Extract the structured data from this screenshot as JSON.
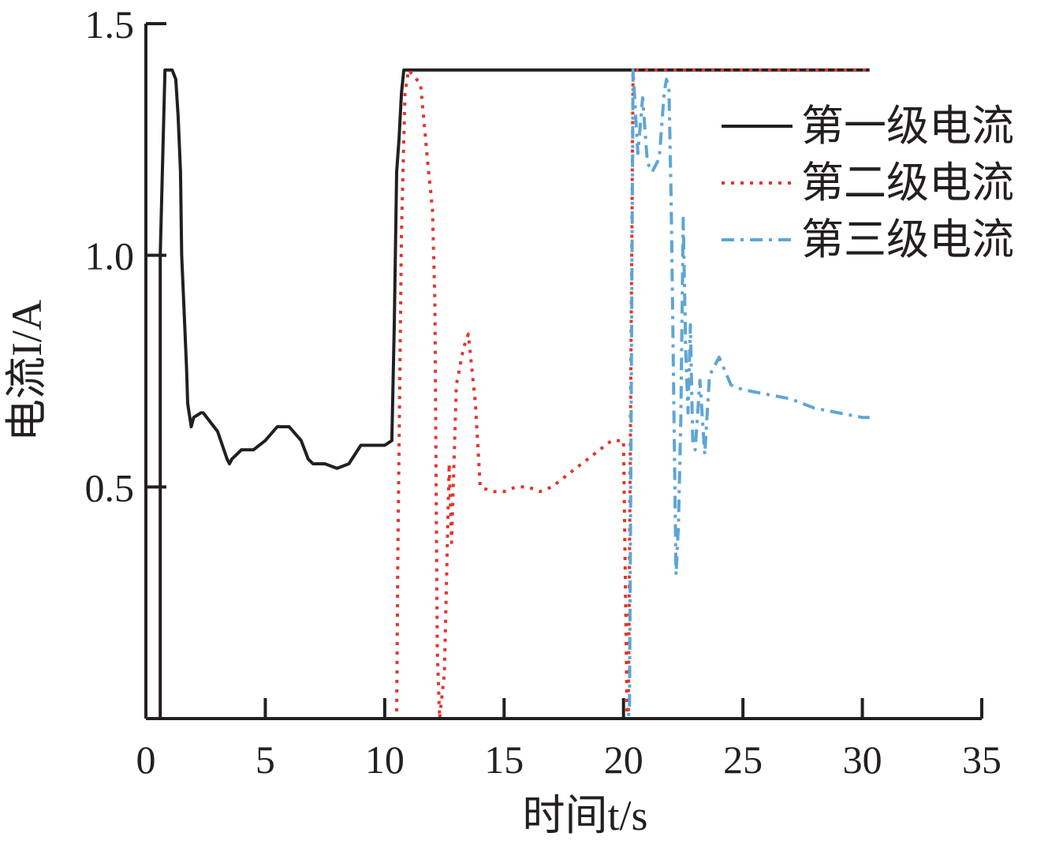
{
  "chart_data": {
    "type": "line",
    "xlabel": "时间t/s",
    "ylabel": "电流I/A",
    "xlim": [
      0,
      35
    ],
    "ylim": [
      0,
      1.5
    ],
    "x_ticks": [
      "0",
      "5",
      "10",
      "15",
      "20",
      "25",
      "30",
      "35"
    ],
    "y_ticks": [
      "0.5",
      "1.0",
      "1.5"
    ],
    "x_tick_values": [
      0,
      5,
      10,
      15,
      20,
      25,
      30,
      35
    ],
    "y_tick_values": [
      0.5,
      1.0,
      1.5
    ],
    "grid": false,
    "legend_position": "top-right",
    "series": [
      {
        "name": "第一级电流",
        "color": "#231f20",
        "style": "solid",
        "x": [
          0.5,
          0.6,
          0.6,
          0.8,
          1.1,
          1.25,
          1.35,
          1.45,
          1.5,
          1.7,
          1.75,
          1.9,
          2.0,
          2.3,
          2.4,
          3.0,
          3.4,
          3.5,
          3.6,
          4.0,
          4.5,
          5.0,
          5.5,
          6.0,
          6.5,
          6.8,
          7.0,
          7.5,
          8.0,
          8.5,
          9.0,
          9.5,
          10.0,
          10.3,
          10.4,
          10.5,
          10.6,
          10.7,
          10.8,
          11.0,
          12.0,
          15.0,
          20.0,
          25.0,
          30.0,
          30.3
        ],
        "y": [
          0.0,
          0.0,
          1.0,
          1.4,
          1.4,
          1.38,
          1.3,
          1.18,
          1.0,
          0.76,
          0.68,
          0.63,
          0.65,
          0.66,
          0.66,
          0.62,
          0.56,
          0.55,
          0.56,
          0.58,
          0.58,
          0.6,
          0.63,
          0.63,
          0.6,
          0.56,
          0.55,
          0.55,
          0.54,
          0.55,
          0.59,
          0.59,
          0.59,
          0.6,
          0.85,
          1.18,
          1.25,
          1.35,
          1.4,
          1.4,
          1.4,
          1.4,
          1.4,
          1.4,
          1.4,
          1.4
        ]
      },
      {
        "name": "第二级电流",
        "color": "#e2352c",
        "style": "dotted",
        "x": [
          0.5,
          10.5,
          10.55,
          10.7,
          10.85,
          11.0,
          11.5,
          11.8,
          12.0,
          12.1,
          12.2,
          12.3,
          12.5,
          12.7,
          12.8,
          13.0,
          13.3,
          13.5,
          13.8,
          14.0,
          14.5,
          15.0,
          15.5,
          16.0,
          16.5,
          17.0,
          17.5,
          18.0,
          18.5,
          19.0,
          19.5,
          20.0,
          20.15,
          20.2,
          20.4,
          21.0,
          25.0,
          30.0,
          30.3
        ],
        "y": [
          0.0,
          0.0,
          0.35,
          1.05,
          1.35,
          1.4,
          1.37,
          1.2,
          1.1,
          0.9,
          0.15,
          0.0,
          0.1,
          0.55,
          0.38,
          0.72,
          0.8,
          0.83,
          0.68,
          0.5,
          0.49,
          0.49,
          0.5,
          0.5,
          0.49,
          0.5,
          0.52,
          0.54,
          0.56,
          0.58,
          0.6,
          0.6,
          0.0,
          0.0,
          1.4,
          1.4,
          1.4,
          1.4,
          1.4
        ]
      },
      {
        "name": "第三级电流",
        "color": "#5ea5d6",
        "style": "dashdot",
        "x": [
          0.5,
          20.2,
          20.25,
          20.4,
          20.6,
          20.8,
          21.0,
          21.2,
          21.5,
          21.7,
          21.8,
          21.9,
          22.0,
          22.2,
          22.3,
          22.4,
          22.5,
          22.6,
          22.7,
          22.8,
          22.9,
          23.0,
          23.2,
          23.4,
          23.6,
          24.0,
          24.5,
          25.0,
          26.0,
          27.0,
          28.0,
          29.0,
          30.0,
          30.3
        ],
        "y": [
          0.0,
          0.0,
          0.03,
          1.4,
          1.22,
          1.34,
          1.2,
          1.18,
          1.21,
          1.35,
          1.38,
          1.36,
          1.1,
          0.31,
          0.42,
          0.65,
          1.08,
          0.8,
          0.66,
          0.85,
          0.6,
          0.58,
          0.73,
          0.57,
          0.74,
          0.78,
          0.72,
          0.71,
          0.7,
          0.69,
          0.67,
          0.66,
          0.65,
          0.65
        ]
      }
    ]
  }
}
